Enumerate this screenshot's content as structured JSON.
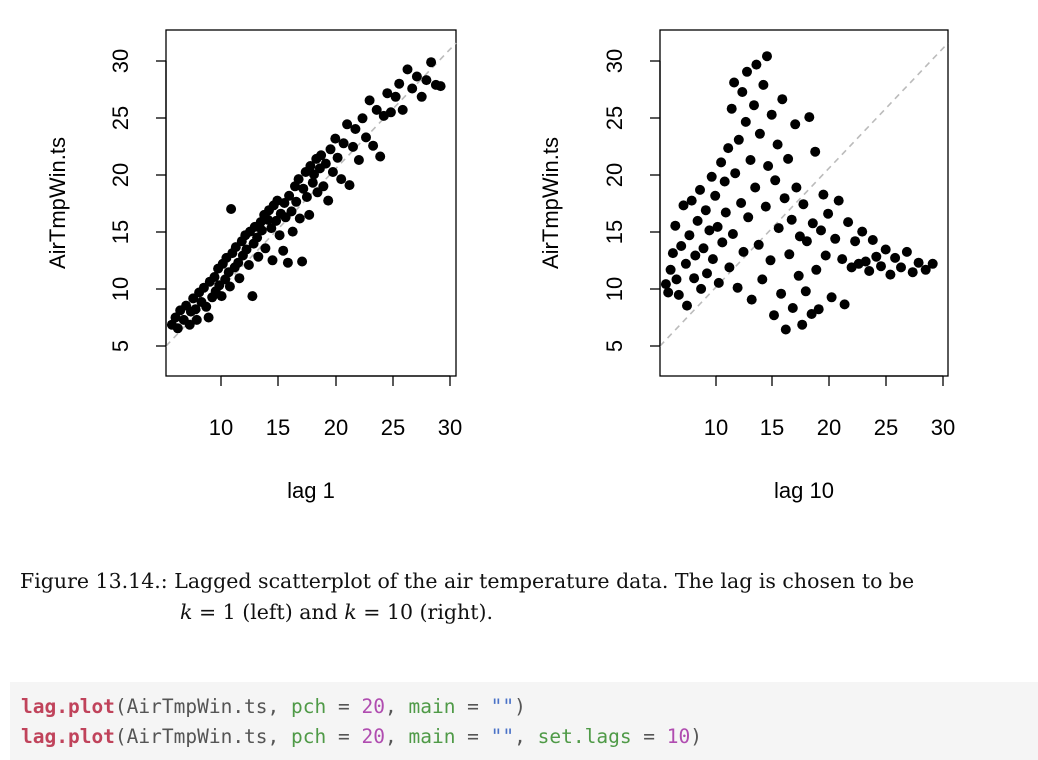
{
  "chart_data": [
    {
      "type": "scatter",
      "title": "",
      "xlabel": "lag 1",
      "ylabel": "AirTmpWin.ts",
      "xlim": [
        6,
        30.5
      ],
      "ylim": [
        2.5,
        31.5
      ],
      "xticks": [
        "10",
        "15",
        "20",
        "25",
        "30"
      ],
      "yticks": [
        "5",
        "10",
        "15",
        "20",
        "25",
        "30"
      ],
      "reference_line": "dashed gray diagonal y = x",
      "grid": false,
      "points": [
        [
          6.5,
          6.8
        ],
        [
          6.8,
          7.4
        ],
        [
          7.0,
          6.5
        ],
        [
          7.2,
          8.0
        ],
        [
          7.5,
          7.2
        ],
        [
          7.7,
          8.4
        ],
        [
          8.0,
          6.8
        ],
        [
          8.1,
          7.9
        ],
        [
          8.3,
          9.0
        ],
        [
          8.5,
          8.1
        ],
        [
          8.6,
          7.2
        ],
        [
          8.8,
          9.5
        ],
        [
          9.0,
          8.7
        ],
        [
          9.2,
          9.9
        ],
        [
          9.4,
          8.3
        ],
        [
          9.6,
          7.4
        ],
        [
          9.7,
          10.4
        ],
        [
          9.9,
          9.1
        ],
        [
          10.1,
          10.8
        ],
        [
          10.2,
          9.6
        ],
        [
          10.4,
          11.5
        ],
        [
          10.5,
          10.1
        ],
        [
          10.7,
          9.2
        ],
        [
          10.8,
          11.9
        ],
        [
          11.0,
          10.6
        ],
        [
          11.1,
          12.4
        ],
        [
          11.3,
          11.2
        ],
        [
          11.4,
          10.0
        ],
        [
          11.5,
          16.5
        ],
        [
          11.6,
          12.8
        ],
        [
          11.8,
          11.6
        ],
        [
          11.9,
          13.3
        ],
        [
          12.1,
          12.0
        ],
        [
          12.2,
          10.7
        ],
        [
          12.4,
          13.8
        ],
        [
          12.5,
          12.6
        ],
        [
          12.7,
          14.3
        ],
        [
          12.8,
          13.1
        ],
        [
          13.0,
          11.8
        ],
        [
          13.1,
          14.6
        ],
        [
          13.3,
          9.2
        ],
        [
          13.4,
          13.6
        ],
        [
          13.5,
          15.0
        ],
        [
          13.7,
          14.1
        ],
        [
          13.8,
          12.5
        ],
        [
          14.0,
          15.4
        ],
        [
          14.1,
          14.7
        ],
        [
          14.3,
          16.0
        ],
        [
          14.4,
          13.2
        ],
        [
          14.6,
          15.6
        ],
        [
          14.7,
          16.4
        ],
        [
          14.9,
          14.9
        ],
        [
          15.0,
          12.2
        ],
        [
          15.1,
          16.8
        ],
        [
          15.3,
          15.5
        ],
        [
          15.4,
          17.2
        ],
        [
          15.6,
          14.3
        ],
        [
          15.7,
          16.1
        ],
        [
          15.9,
          13.0
        ],
        [
          16.0,
          17.0
        ],
        [
          16.1,
          15.8
        ],
        [
          16.3,
          12.0
        ],
        [
          16.4,
          17.6
        ],
        [
          16.6,
          16.3
        ],
        [
          16.7,
          14.6
        ],
        [
          16.9,
          18.4
        ],
        [
          17.0,
          17.1
        ],
        [
          17.2,
          19.0
        ],
        [
          17.3,
          15.7
        ],
        [
          17.5,
          12.1
        ],
        [
          17.6,
          18.2
        ],
        [
          17.8,
          19.6
        ],
        [
          17.9,
          17.5
        ],
        [
          18.1,
          16.0
        ],
        [
          18.2,
          20.1
        ],
        [
          18.4,
          18.7
        ],
        [
          18.5,
          19.4
        ],
        [
          18.7,
          20.7
        ],
        [
          18.8,
          17.9
        ],
        [
          19.0,
          19.9
        ],
        [
          19.1,
          21.0
        ],
        [
          19.3,
          18.4
        ],
        [
          19.5,
          20.3
        ],
        [
          19.7,
          17.2
        ],
        [
          19.9,
          21.5
        ],
        [
          20.1,
          19.6
        ],
        [
          20.3,
          22.4
        ],
        [
          20.5,
          20.8
        ],
        [
          20.8,
          19.0
        ],
        [
          21.0,
          22.0
        ],
        [
          21.3,
          23.6
        ],
        [
          21.5,
          18.5
        ],
        [
          21.8,
          21.7
        ],
        [
          22.0,
          23.2
        ],
        [
          22.3,
          20.6
        ],
        [
          22.6,
          24.1
        ],
        [
          22.9,
          22.5
        ],
        [
          23.2,
          25.6
        ],
        [
          23.5,
          21.8
        ],
        [
          23.8,
          24.8
        ],
        [
          24.1,
          20.9
        ],
        [
          24.4,
          24.3
        ],
        [
          24.7,
          26.2
        ],
        [
          25.0,
          24.6
        ],
        [
          25.4,
          25.9
        ],
        [
          25.7,
          27.0
        ],
        [
          26.0,
          24.8
        ],
        [
          26.4,
          28.2
        ],
        [
          26.8,
          26.6
        ],
        [
          27.2,
          27.6
        ],
        [
          27.6,
          25.9
        ],
        [
          28.0,
          27.3
        ],
        [
          28.4,
          28.8
        ],
        [
          28.8,
          26.9
        ],
        [
          29.2,
          26.8
        ]
      ]
    },
    {
      "type": "scatter",
      "title": "",
      "xlabel": "lag 10",
      "ylabel": "AirTmpWin.ts",
      "xlim": [
        6,
        30.5
      ],
      "ylim": [
        2.5,
        31.5
      ],
      "xticks": [
        "10",
        "15",
        "20",
        "25",
        "30"
      ],
      "yticks": [
        "5",
        "10",
        "15",
        "20",
        "25",
        "30"
      ],
      "reference_line": "dashed gray diagonal y = x",
      "grid": false,
      "points": [
        [
          6.5,
          10.2
        ],
        [
          6.7,
          9.5
        ],
        [
          6.9,
          11.4
        ],
        [
          7.1,
          12.8
        ],
        [
          7.3,
          15.1
        ],
        [
          7.4,
          10.6
        ],
        [
          7.6,
          9.3
        ],
        [
          7.8,
          13.4
        ],
        [
          8.0,
          16.8
        ],
        [
          8.2,
          11.9
        ],
        [
          8.3,
          8.4
        ],
        [
          8.5,
          14.3
        ],
        [
          8.7,
          17.2
        ],
        [
          8.9,
          10.7
        ],
        [
          9.0,
          12.6
        ],
        [
          9.2,
          15.5
        ],
        [
          9.4,
          18.1
        ],
        [
          9.5,
          9.8
        ],
        [
          9.7,
          13.2
        ],
        [
          9.9,
          16.4
        ],
        [
          10.0,
          11.1
        ],
        [
          10.2,
          14.7
        ],
        [
          10.4,
          19.2
        ],
        [
          10.5,
          12.3
        ],
        [
          10.7,
          17.6
        ],
        [
          10.9,
          15.0
        ],
        [
          11.0,
          10.3
        ],
        [
          11.2,
          20.4
        ],
        [
          11.3,
          13.7
        ],
        [
          11.5,
          18.8
        ],
        [
          11.6,
          16.2
        ],
        [
          11.8,
          21.6
        ],
        [
          11.9,
          11.6
        ],
        [
          12.1,
          24.9
        ],
        [
          12.2,
          14.4
        ],
        [
          12.3,
          27.1
        ],
        [
          12.4,
          19.5
        ],
        [
          12.6,
          9.9
        ],
        [
          12.7,
          22.3
        ],
        [
          12.9,
          17.0
        ],
        [
          13.0,
          26.3
        ],
        [
          13.1,
          12.9
        ],
        [
          13.3,
          23.8
        ],
        [
          13.4,
          28.0
        ],
        [
          13.5,
          15.8
        ],
        [
          13.7,
          20.6
        ],
        [
          13.8,
          8.9
        ],
        [
          14.0,
          25.2
        ],
        [
          14.1,
          18.3
        ],
        [
          14.2,
          28.6
        ],
        [
          14.4,
          13.5
        ],
        [
          14.5,
          22.8
        ],
        [
          14.7,
          10.6
        ],
        [
          14.8,
          26.9
        ],
        [
          15.0,
          16.7
        ],
        [
          15.1,
          29.3
        ],
        [
          15.2,
          20.1
        ],
        [
          15.4,
          12.2
        ],
        [
          15.5,
          24.4
        ],
        [
          15.7,
          7.6
        ],
        [
          15.8,
          18.9
        ],
        [
          16.0,
          21.9
        ],
        [
          16.1,
          14.9
        ],
        [
          16.3,
          9.4
        ],
        [
          16.4,
          25.7
        ],
        [
          16.6,
          17.4
        ],
        [
          16.7,
          6.4
        ],
        [
          16.9,
          20.7
        ],
        [
          17.0,
          12.7
        ],
        [
          17.2,
          15.6
        ],
        [
          17.3,
          8.2
        ],
        [
          17.5,
          23.6
        ],
        [
          17.6,
          18.3
        ],
        [
          17.8,
          10.9
        ],
        [
          17.9,
          14.2
        ],
        [
          18.1,
          6.8
        ],
        [
          18.2,
          16.9
        ],
        [
          18.4,
          9.6
        ],
        [
          18.5,
          13.8
        ],
        [
          18.7,
          24.2
        ],
        [
          18.9,
          7.7
        ],
        [
          19.0,
          15.3
        ],
        [
          19.2,
          21.3
        ],
        [
          19.3,
          11.4
        ],
        [
          19.5,
          8.1
        ],
        [
          19.7,
          14.7
        ],
        [
          19.9,
          17.7
        ],
        [
          20.1,
          12.6
        ],
        [
          20.3,
          16.1
        ],
        [
          20.6,
          9.1
        ],
        [
          20.9,
          14.0
        ],
        [
          21.2,
          17.2
        ],
        [
          21.5,
          12.3
        ],
        [
          21.7,
          8.5
        ],
        [
          22.0,
          15.4
        ],
        [
          22.3,
          11.6
        ],
        [
          22.6,
          13.8
        ],
        [
          22.9,
          11.9
        ],
        [
          23.2,
          14.6
        ],
        [
          23.5,
          12.1
        ],
        [
          23.8,
          11.3
        ],
        [
          24.1,
          13.9
        ],
        [
          24.4,
          12.5
        ],
        [
          24.8,
          11.7
        ],
        [
          25.2,
          13.1
        ],
        [
          25.6,
          11.0
        ],
        [
          26.0,
          12.4
        ],
        [
          26.5,
          11.6
        ],
        [
          27.0,
          12.9
        ],
        [
          27.5,
          11.2
        ],
        [
          28.0,
          12.0
        ],
        [
          28.6,
          11.4
        ],
        [
          29.2,
          11.9
        ]
      ]
    }
  ],
  "caption": {
    "label": "Figure 13.14.:",
    "text1": "Lagged scatterplot of the air temperature data. The lag is chosen to be",
    "k1": "k",
    "eq1": " = 1 (left) and ",
    "k2": "k",
    "eq2": " = 10 (right)."
  },
  "code": [
    {
      "fn": "lag.plot",
      "open": "(AirTmpWin.ts, ",
      "arg1": "pch",
      "eq1": " = ",
      "num1": "20",
      "sep1": ", ",
      "arg2": "main",
      "eq2": " = ",
      "str": "\"\"",
      "close": ")"
    },
    {
      "fn": "lag.plot",
      "open": "(AirTmpWin.ts, ",
      "arg1": "pch",
      "eq1": " = ",
      "num1": "20",
      "sep1": ", ",
      "arg2": "main",
      "eq2": " = ",
      "str": "\"\"",
      "sep2": ", ",
      "arg3": "set.lags",
      "eq3": " = ",
      "num2": "10",
      "close": ")"
    }
  ]
}
